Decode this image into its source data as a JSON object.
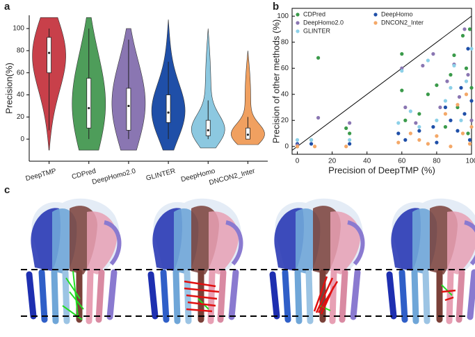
{
  "panel_labels": [
    "a",
    "b",
    "c"
  ],
  "chart_data": [
    {
      "type": "violin",
      "y_label": "Precision(%)",
      "categories": [
        "DeepTMP",
        "CDPred",
        "DeepHomo2.0",
        "GLINTER",
        "DeepHomo",
        "DNCON2_Inter"
      ],
      "colors": [
        "#c8404a",
        "#4e9d5a",
        "#8a76b2",
        "#1f4fa8",
        "#8cc8e0",
        "#f0a060"
      ],
      "extent_low": [
        -10,
        -10,
        -10,
        -10,
        -8,
        -5
      ],
      "extent_high": [
        110,
        110,
        100,
        108,
        100,
        80
      ],
      "whisker_low": [
        8,
        0,
        0,
        0,
        0,
        0
      ],
      "q1": [
        60,
        10,
        8,
        15,
        3,
        0
      ],
      "median": [
        78,
        28,
        30,
        24,
        8,
        4
      ],
      "q3": [
        92,
        55,
        46,
        40,
        17,
        10
      ],
      "whisker_high": [
        100,
        100,
        90,
        70,
        35,
        20
      ],
      "ylim": [
        -20,
        112
      ],
      "yticks": [
        0,
        20,
        40,
        60,
        80,
        100
      ]
    },
    {
      "type": "scatter",
      "x_label": "Precision of DeepTMP (%)",
      "y_label": "Precision of other methods (%)",
      "xlim": [
        -3,
        100
      ],
      "ylim": [
        -6,
        106
      ],
      "xticks": [
        0,
        20,
        40,
        60,
        80,
        100
      ],
      "yticks": [
        0,
        20,
        40,
        60,
        80,
        100
      ],
      "legend": "upper left",
      "legend_columns": 2,
      "series": [
        {
          "name": "CDPred",
          "color": "#3a9a4a",
          "x": [
            0,
            8,
            12,
            28,
            30,
            60,
            60,
            62,
            70,
            75,
            80,
            85,
            88,
            90,
            92,
            95,
            97,
            98,
            99,
            100
          ],
          "y": [
            0,
            5,
            68,
            14,
            10,
            71,
            43,
            20,
            25,
            40,
            47,
            15,
            55,
            70,
            30,
            85,
            60,
            10,
            90,
            45
          ]
        },
        {
          "name": "DeepHomo",
          "color": "#1f4fa8",
          "x": [
            0,
            8,
            30,
            58,
            62,
            70,
            78,
            80,
            85,
            88,
            92,
            94,
            96,
            98,
            99,
            100
          ],
          "y": [
            2,
            2,
            2,
            10,
            5,
            12,
            15,
            3,
            30,
            20,
            12,
            45,
            25,
            75,
            5,
            35
          ]
        },
        {
          "name": "DeepHomo2.0",
          "color": "#8a76b2",
          "x": [
            0,
            12,
            30,
            60,
            62,
            68,
            72,
            78,
            82,
            86,
            90,
            93,
            96,
            98,
            100
          ],
          "y": [
            1,
            22,
            18,
            60,
            30,
            18,
            62,
            71,
            30,
            50,
            63,
            38,
            90,
            55,
            20
          ]
        },
        {
          "name": "DNCON2_Inter",
          "color": "#f4a868",
          "x": [
            0,
            10,
            28,
            58,
            65,
            70,
            75,
            80,
            85,
            88,
            92,
            95,
            97,
            99,
            100
          ],
          "y": [
            0,
            0,
            0,
            3,
            10,
            5,
            2,
            8,
            25,
            0,
            32,
            10,
            40,
            2,
            15
          ]
        },
        {
          "name": "GLINTER",
          "color": "#8cd0e8",
          "x": [
            0,
            8,
            30,
            58,
            60,
            65,
            70,
            75,
            80,
            85,
            88,
            90,
            94,
            97,
            100
          ],
          "y": [
            5,
            5,
            5,
            18,
            58,
            27,
            15,
            66,
            20,
            35,
            45,
            62,
            20,
            50,
            75
          ]
        }
      ]
    }
  ]
}
